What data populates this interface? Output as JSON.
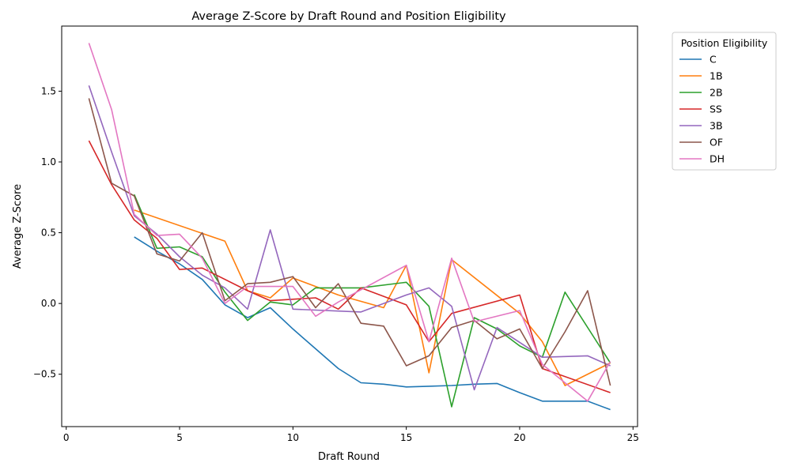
{
  "chart_data": {
    "type": "line",
    "title": "Average Z-Score by Draft Round and Position Eligibility",
    "xlabel": "Draft Round",
    "ylabel": "Average Z-Score",
    "xlim": [
      -0.2,
      25.2
    ],
    "ylim": [
      -0.87,
      1.96
    ],
    "xticks": [
      0,
      5,
      10,
      15,
      20,
      25
    ],
    "yticks": [
      -0.5,
      0.0,
      0.5,
      1.0,
      1.5
    ],
    "ytick_labels": [
      "−0.5",
      "0.0",
      "0.5",
      "1.0",
      "1.5"
    ],
    "grid": false,
    "legend_title": "Position Eligibility",
    "legend_position": "outside upper right",
    "series": [
      {
        "name": "C",
        "color": "#1f77b4",
        "x": [
          3,
          4,
          5,
          6,
          7,
          8,
          9,
          10,
          11,
          12,
          13,
          14,
          15,
          16,
          17,
          18,
          19,
          20,
          21,
          22,
          23,
          24
        ],
        "y": [
          0.47,
          0.37,
          0.28,
          0.17,
          -0.01,
          -0.1,
          -0.03,
          -0.18,
          -0.32,
          -0.46,
          -0.56,
          -0.57,
          -0.59,
          -0.585,
          -0.58,
          -0.57,
          -0.565,
          -0.63,
          -0.69,
          -0.69,
          -0.69,
          -0.75
        ]
      },
      {
        "name": "1B",
        "color": "#ff7f0e",
        "x": [
          3,
          7,
          8,
          9,
          10,
          12,
          14,
          15,
          16,
          17,
          20,
          21,
          22,
          24
        ],
        "y": [
          0.66,
          0.44,
          0.09,
          0.04,
          0.18,
          0.06,
          -0.03,
          0.27,
          -0.49,
          0.31,
          -0.07,
          -0.27,
          -0.58,
          -0.42
        ]
      },
      {
        "name": "2B",
        "color": "#2ca02c",
        "x": [
          3,
          4,
          5,
          6,
          7,
          8,
          9,
          10,
          11,
          13,
          15,
          16,
          17,
          18,
          19,
          20,
          21,
          22,
          24
        ],
        "y": [
          0.77,
          0.39,
          0.4,
          0.33,
          0.08,
          -0.12,
          0.01,
          -0.01,
          0.11,
          0.11,
          0.15,
          -0.02,
          -0.73,
          -0.1,
          -0.18,
          -0.3,
          -0.38,
          0.08,
          -0.42
        ]
      },
      {
        "name": "SS",
        "color": "#d62728",
        "x": [
          1,
          2,
          3,
          4,
          5,
          6,
          8,
          9,
          11,
          12,
          13,
          15,
          16,
          17,
          20,
          21,
          24
        ],
        "y": [
          1.15,
          0.84,
          0.59,
          0.46,
          0.24,
          0.25,
          0.09,
          0.02,
          0.04,
          -0.04,
          0.11,
          -0.01,
          -0.27,
          -0.07,
          0.06,
          -0.46,
          -0.63
        ]
      },
      {
        "name": "3B",
        "color": "#9467bd",
        "x": [
          1,
          2,
          3,
          4,
          5,
          6,
          7,
          8,
          9,
          10,
          13,
          15,
          16,
          17,
          18,
          19,
          21,
          23,
          24
        ],
        "y": [
          1.54,
          1.07,
          0.62,
          0.49,
          0.33,
          0.2,
          0.11,
          -0.04,
          0.52,
          -0.04,
          -0.06,
          0.06,
          0.11,
          -0.02,
          -0.61,
          -0.17,
          -0.38,
          -0.37,
          -0.44
        ]
      },
      {
        "name": "OF",
        "color": "#8c564b",
        "x": [
          1,
          2,
          3,
          4,
          5,
          6,
          7,
          8,
          9,
          10,
          11,
          12,
          13,
          14,
          15,
          16,
          17,
          18,
          19,
          20,
          21,
          22,
          23,
          24
        ],
        "y": [
          1.45,
          0.85,
          0.76,
          0.35,
          0.3,
          0.5,
          0.02,
          0.14,
          0.15,
          0.19,
          -0.03,
          0.14,
          -0.14,
          -0.16,
          -0.44,
          -0.37,
          -0.17,
          -0.12,
          -0.25,
          -0.18,
          -0.46,
          -0.2,
          0.09,
          -0.58
        ]
      },
      {
        "name": "DH",
        "color": "#e377c2",
        "x": [
          1,
          2,
          3,
          4,
          5,
          6,
          7,
          8,
          10,
          11,
          12,
          15,
          16,
          17,
          18,
          20,
          21,
          23,
          24
        ],
        "y": [
          1.84,
          1.37,
          0.63,
          0.48,
          0.49,
          0.32,
          0.0,
          0.12,
          0.12,
          -0.09,
          0.01,
          0.27,
          -0.27,
          0.32,
          -0.13,
          -0.05,
          -0.43,
          -0.69,
          -0.41
        ]
      }
    ]
  }
}
